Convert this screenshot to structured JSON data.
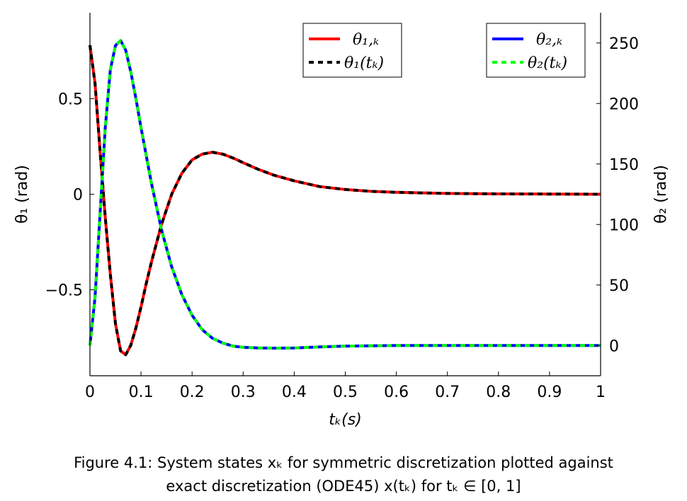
{
  "caption": {
    "line1": "Figure 4.1:  System states xₖ for symmetric discretization plotted against",
    "line2": "exact discretization (ODE45) x(tₖ) for tₖ ∈ [0, 1]"
  },
  "chart_data": {
    "type": "line",
    "title": "",
    "xlabel": "tₖ(s)",
    "ylabel_left": "θ₁ (rad)",
    "ylabel_right": "θ₂ (rad)",
    "xlim": [
      0,
      1
    ],
    "ylim_left": [
      -0.95,
      0.95
    ],
    "ylim_right": [
      -25,
      275
    ],
    "xticks": [
      0,
      0.1,
      0.2,
      0.3,
      0.4,
      0.5,
      0.6,
      0.7,
      0.8,
      0.9,
      1
    ],
    "xtick_labels": [
      "0",
      "0.1",
      "0.2",
      "0.3",
      "0.4",
      "0.5",
      "0.6",
      "0.7",
      "0.8",
      "0.9",
      "1"
    ],
    "yticks_left": [
      -0.5,
      0,
      0.5
    ],
    "ytick_labels_left": [
      "−0.5",
      "0",
      "0.5"
    ],
    "yticks_right": [
      0,
      50,
      100,
      150,
      200,
      250
    ],
    "ytick_labels_right": [
      "0",
      "50",
      "100",
      "150",
      "200",
      "250"
    ],
    "grid": false,
    "legends": [
      {
        "placement": "top-center",
        "entries": [
          "θ₁,ₖ",
          "θ₁(tₖ)"
        ]
      },
      {
        "placement": "top-right",
        "entries": [
          "θ₂,ₖ",
          "θ₂(tₖ)"
        ]
      }
    ],
    "colors": {
      "theta1_k": "#ff0000",
      "theta1_exact": "#000000",
      "theta2_k": "#0000ff",
      "theta2_exact": "#00ff00"
    },
    "series": [
      {
        "name": "θ₁,ₖ",
        "axis": "left",
        "style": "solid",
        "color": "#ff0000",
        "x": [
          0,
          0.01,
          0.02,
          0.03,
          0.04,
          0.05,
          0.06,
          0.07,
          0.08,
          0.09,
          0.1,
          0.11,
          0.12,
          0.13,
          0.14,
          0.15,
          0.16,
          0.18,
          0.2,
          0.22,
          0.24,
          0.26,
          0.28,
          0.3,
          0.33,
          0.36,
          0.4,
          0.45,
          0.5,
          0.55,
          0.6,
          0.7,
          0.8,
          0.9,
          1.0
        ],
        "y": [
          0.78,
          0.58,
          0.22,
          -0.12,
          -0.42,
          -0.68,
          -0.82,
          -0.84,
          -0.79,
          -0.7,
          -0.59,
          -0.47,
          -0.36,
          -0.26,
          -0.16,
          -0.08,
          0.0,
          0.11,
          0.18,
          0.21,
          0.22,
          0.21,
          0.19,
          0.165,
          0.13,
          0.1,
          0.07,
          0.04,
          0.025,
          0.015,
          0.01,
          0.004,
          0.002,
          0.001,
          0.0
        ]
      },
      {
        "name": "θ₁(tₖ)",
        "axis": "left",
        "style": "dashed",
        "color": "#000000",
        "x": [
          0,
          0.01,
          0.02,
          0.03,
          0.04,
          0.05,
          0.06,
          0.07,
          0.08,
          0.09,
          0.1,
          0.11,
          0.12,
          0.13,
          0.14,
          0.15,
          0.16,
          0.18,
          0.2,
          0.22,
          0.24,
          0.26,
          0.28,
          0.3,
          0.33,
          0.36,
          0.4,
          0.45,
          0.5,
          0.55,
          0.6,
          0.7,
          0.8,
          0.9,
          1.0
        ],
        "y": [
          0.78,
          0.58,
          0.22,
          -0.12,
          -0.42,
          -0.68,
          -0.82,
          -0.84,
          -0.79,
          -0.7,
          -0.59,
          -0.47,
          -0.36,
          -0.26,
          -0.16,
          -0.08,
          0.0,
          0.11,
          0.18,
          0.21,
          0.22,
          0.21,
          0.19,
          0.165,
          0.13,
          0.1,
          0.07,
          0.04,
          0.025,
          0.015,
          0.01,
          0.004,
          0.002,
          0.001,
          0.0
        ]
      },
      {
        "name": "θ₂,ₖ",
        "axis": "right",
        "style": "solid",
        "color": "#0000ff",
        "x": [
          0,
          0.01,
          0.02,
          0.03,
          0.04,
          0.05,
          0.06,
          0.07,
          0.08,
          0.09,
          0.1,
          0.12,
          0.14,
          0.16,
          0.18,
          0.2,
          0.22,
          0.24,
          0.26,
          0.28,
          0.3,
          0.33,
          0.36,
          0.4,
          0.45,
          0.5,
          0.6,
          0.7,
          0.8,
          0.9,
          1.0
        ],
        "y": [
          0,
          40,
          110,
          180,
          228,
          248,
          252,
          244,
          226,
          204,
          180,
          135,
          96,
          65,
          42,
          25,
          13,
          6,
          2,
          -0.5,
          -1.5,
          -2,
          -2.2,
          -2,
          -1.2,
          -0.5,
          0,
          0,
          0,
          0,
          0
        ]
      },
      {
        "name": "θ₂(tₖ)",
        "axis": "right",
        "style": "dashed",
        "color": "#00ff00",
        "x": [
          0,
          0.01,
          0.02,
          0.03,
          0.04,
          0.05,
          0.06,
          0.07,
          0.08,
          0.09,
          0.1,
          0.12,
          0.14,
          0.16,
          0.18,
          0.2,
          0.22,
          0.24,
          0.26,
          0.28,
          0.3,
          0.33,
          0.36,
          0.4,
          0.45,
          0.5,
          0.6,
          0.7,
          0.8,
          0.9,
          1.0
        ],
        "y": [
          0,
          40,
          110,
          180,
          228,
          248,
          252,
          244,
          226,
          204,
          180,
          135,
          96,
          65,
          42,
          25,
          13,
          6,
          2,
          -0.5,
          -1.5,
          -2,
          -2.2,
          -2,
          -1.2,
          -0.5,
          0,
          0,
          0,
          0,
          0
        ]
      }
    ]
  }
}
